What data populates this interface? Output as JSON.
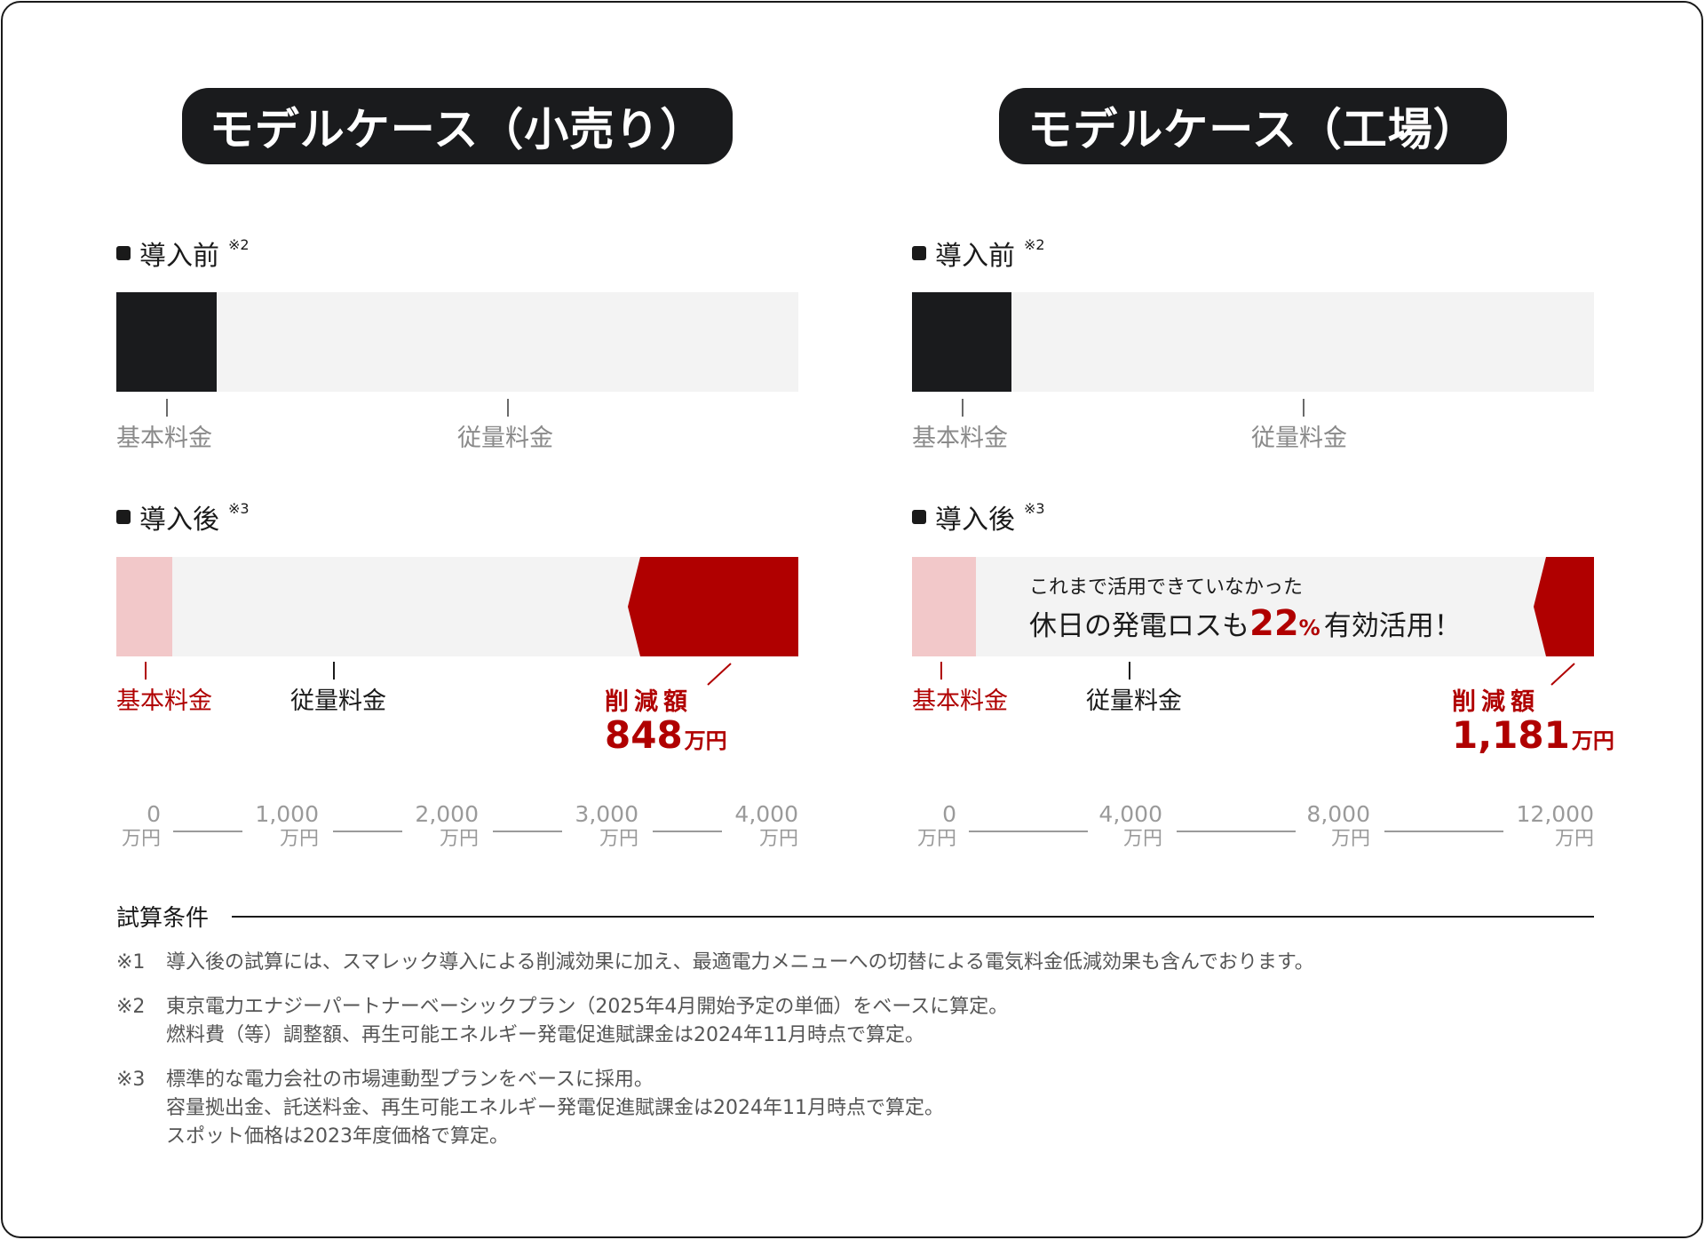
{
  "panels": [
    {
      "title": "モデルケース（小売り）",
      "before": {
        "title": "導入前",
        "note": "※2",
        "label_base": "基本料金",
        "label_usage": "従量料金"
      },
      "after": {
        "title": "導入後",
        "note": "※3",
        "label_base": "基本料金",
        "label_usage": "従量料金"
      },
      "reduction": {
        "label": "削減額",
        "value": "848",
        "unit": "万円"
      },
      "axis": [
        {
          "value": "0",
          "unit": "万円"
        },
        {
          "value": "1,000",
          "unit": "万円"
        },
        {
          "value": "2,000",
          "unit": "万円"
        },
        {
          "value": "3,000",
          "unit": "万円"
        },
        {
          "value": "4,000",
          "unit": "万円"
        }
      ]
    },
    {
      "title": "モデルケース（工場）",
      "before": {
        "title": "導入前",
        "note": "※2",
        "label_base": "基本料金",
        "label_usage": "従量料金"
      },
      "after": {
        "title": "導入後",
        "note": "※3",
        "label_base": "基本料金",
        "label_usage": "従量料金"
      },
      "reduction": {
        "label": "削減額",
        "value": "1,181",
        "unit": "万円"
      },
      "overlay": {
        "line1": "これまで活用できていなかった",
        "line2_pre": "休日の発電ロスも",
        "highlight": "22",
        "highlight_unit": "%",
        "line2_post": "有効活用！"
      },
      "axis": [
        {
          "value": "0",
          "unit": "万円"
        },
        {
          "value": "4,000",
          "unit": "万円"
        },
        {
          "value": "8,000",
          "unit": "万円"
        },
        {
          "value": "12,000",
          "unit": "万円"
        }
      ]
    }
  ],
  "chart_data": [
    {
      "type": "bar",
      "title": "モデルケース（小売り）",
      "unit": "万円",
      "xlim": [
        0,
        4000
      ],
      "categories": [
        "導入前",
        "導入後"
      ],
      "series": [
        {
          "name": "基本料金",
          "values": [
            600,
            330
          ]
        },
        {
          "name": "従量料金",
          "values": [
            3400,
            2822
          ]
        },
        {
          "name": "削減額",
          "values": [
            0,
            848
          ]
        }
      ],
      "colors": {
        "before_base": "#1a1b1d",
        "after_base": "#f2c8c9",
        "usage": "#f3f3f3",
        "reduction": "#b00000"
      }
    },
    {
      "type": "bar",
      "title": "モデルケース（工場）",
      "unit": "万円",
      "xlim": [
        0,
        12000
      ],
      "categories": [
        "導入前",
        "導入後"
      ],
      "series": [
        {
          "name": "基本料金",
          "values": [
            1750,
            1110
          ]
        },
        {
          "name": "従量料金",
          "values": [
            10250,
            9709
          ]
        },
        {
          "name": "削減額",
          "values": [
            0,
            1181
          ]
        }
      ],
      "colors": {
        "before_base": "#1a1b1d",
        "after_base": "#f2c8c9",
        "usage": "#f3f3f3",
        "reduction": "#b00000"
      }
    }
  ],
  "conditions": {
    "title": "試算条件",
    "notes": [
      {
        "mark": "※1",
        "lines": [
          "導入後の試算には、スマレック導入による削減効果に加え、最適電力メニューへの切替による電気料金低減効果も含んでおります。"
        ]
      },
      {
        "mark": "※2",
        "lines": [
          "東京電力エナジーパートナーベーシックプラン（2025年4月開始予定の単価）をベースに算定。",
          "燃料費（等）調整額、再生可能エネルギー発電促進賦課金は2024年11月時点で算定。"
        ]
      },
      {
        "mark": "※3",
        "lines": [
          "標準的な電力会社の市場連動型プランをベースに採用。",
          "容量拠出金、託送料金、再生可能エネルギー発電促進賦課金は2024年11月時点で算定。",
          "スポット価格は2023年度価格で算定。"
        ]
      }
    ]
  }
}
